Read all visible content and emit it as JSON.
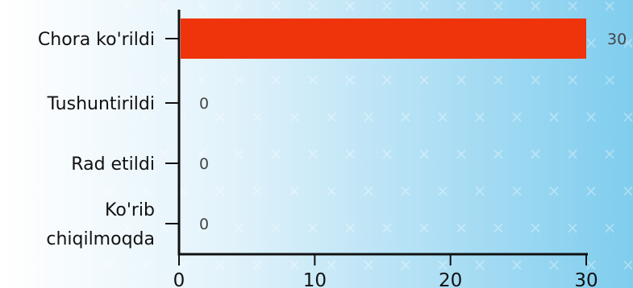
{
  "chart_data": {
    "type": "bar",
    "orientation": "horizontal",
    "categories": [
      "Chora ko'rildi",
      "Tushuntirildi",
      "Rad etildi",
      "Ko'rib chiqilmoqda"
    ],
    "category_lines": [
      [
        "Chora ko'rildi"
      ],
      [
        "Tushuntirildi"
      ],
      [
        "Rad etildi"
      ],
      [
        "Ko'rib",
        "chiqilmoqda"
      ]
    ],
    "values": [
      30,
      0,
      0,
      0
    ],
    "data_labels": [
      "30",
      "0",
      "0",
      "0"
    ],
    "x_ticks": [
      0,
      10,
      20,
      30
    ],
    "xlim": [
      0,
      30
    ],
    "title": "",
    "xlabel": "",
    "ylabel": "",
    "grid": false,
    "legend": "none",
    "colors": {
      "bar": "#ef330a",
      "axis": "#111111",
      "background_start": "#ffffff",
      "background_end": "#7fcdee"
    }
  }
}
